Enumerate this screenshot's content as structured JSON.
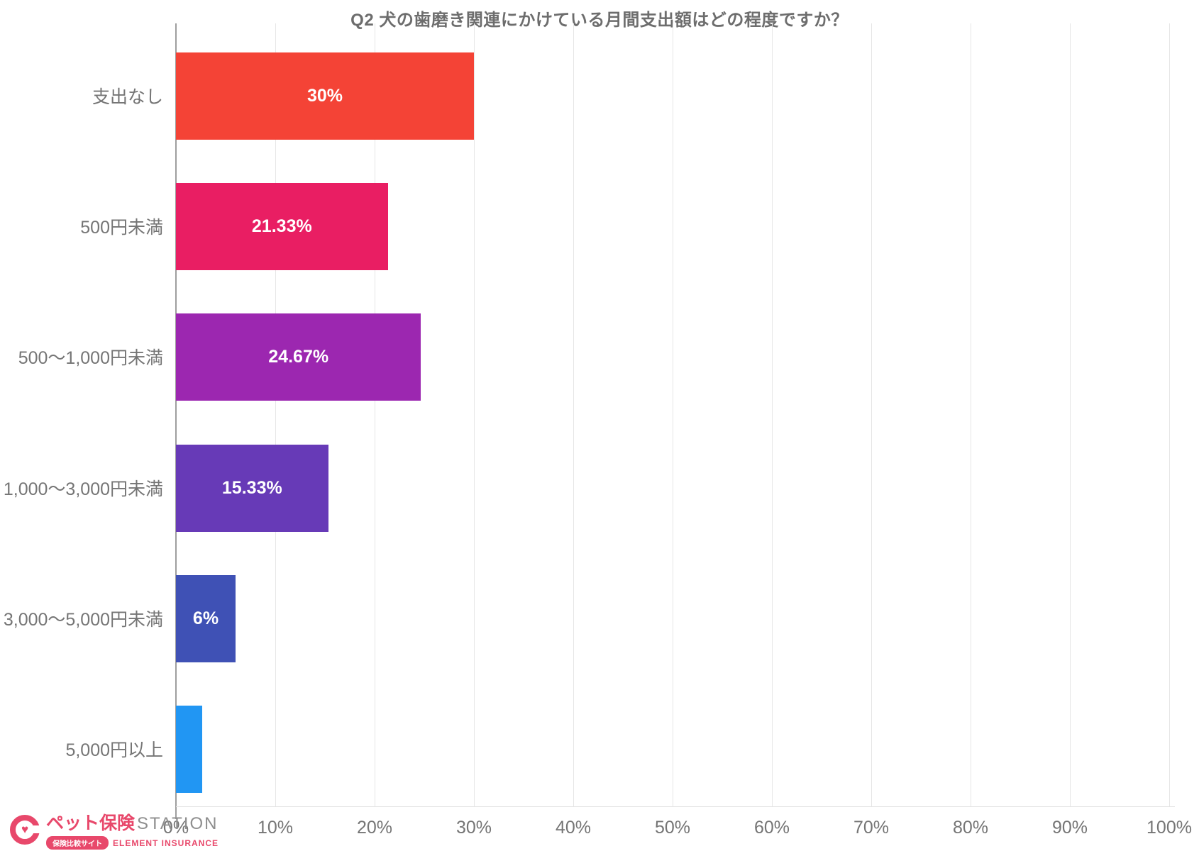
{
  "chart_data": {
    "type": "bar",
    "orientation": "horizontal",
    "title": "Q2 犬の歯磨き関連にかけている月間支出額はどの程度ですか？",
    "categories": [
      "支出なし",
      "500円未満",
      "500〜1,000円未満",
      "1,000〜3,000円未満",
      "3,000〜5,000円未満",
      "5,000円以上"
    ],
    "values": [
      30,
      21.33,
      24.67,
      15.33,
      6,
      2.67
    ],
    "value_labels": [
      "30%",
      "21.33%",
      "24.67%",
      "15.33%",
      "6%",
      ""
    ],
    "bar_colors": [
      "#F44336",
      "#E91E63",
      "#9C27B0",
      "#673AB7",
      "#3F51B5",
      "#2196F3"
    ],
    "xlim": [
      0,
      100
    ],
    "x_ticks": [
      "0%",
      "10%",
      "20%",
      "30%",
      "40%",
      "50%",
      "60%",
      "70%",
      "80%",
      "90%",
      "100%"
    ],
    "grid": true,
    "legend": false
  },
  "colors": {
    "grid_line": "#e6e6e6",
    "axis_line": "#9e9e9e",
    "axis_text": "#757575",
    "title_text": "#6d6d6d",
    "bar_value_text": "#ffffff",
    "brand_accent": "#e8486b"
  },
  "logo": {
    "brand_jp": "ペット保険",
    "brand_en": "STATION",
    "badge": "保険比較サイト",
    "company": "ELEMENT INSURANCE",
    "heart_glyph": "♥"
  }
}
